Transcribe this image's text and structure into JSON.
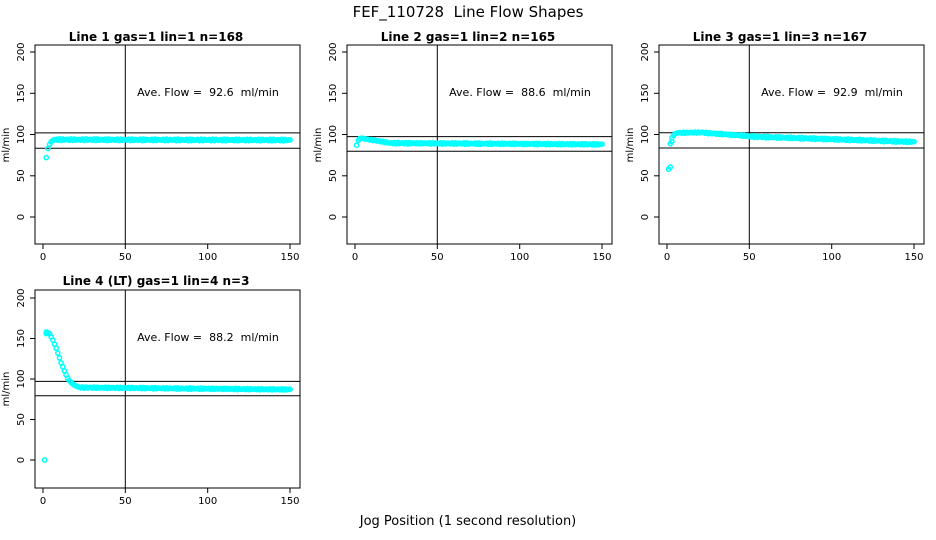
{
  "page_title": "FEF_110728  Line Flow Shapes",
  "x_axis_label": "Jog Position (1 second resolution)",
  "point_color": "#00ffff",
  "axis_color": "#000000",
  "chart_data": [
    {
      "type": "scatter",
      "title": "Line 1 gas=1 lin=1 n=168",
      "annotation": "Ave. Flow =  92.6  ml/min",
      "ave_flow_ml_min": 92.6,
      "n": 168,
      "ylabel": "ml/min",
      "xticks": [
        0,
        50,
        100,
        150
      ],
      "yticks": [
        0,
        50,
        100,
        150,
        200
      ],
      "xlim": [
        -5,
        156
      ],
      "ylim": [
        -33,
        209
      ],
      "vline_x": 50,
      "hlines": [
        101.9,
        83.3
      ],
      "points": [
        [
          2,
          72
        ],
        [
          3,
          83
        ],
        [
          4,
          88
        ],
        [
          5,
          91
        ],
        [
          6,
          93
        ]
      ],
      "runs": [
        {
          "x0": 7,
          "x1": 150,
          "y0": 93.8,
          "y1": 93.2,
          "jitter": 0.9
        }
      ]
    },
    {
      "type": "scatter",
      "title": "Line 2 gas=1 lin=2 n=165",
      "annotation": "Ave. Flow =  88.6  ml/min",
      "ave_flow_ml_min": 88.6,
      "n": 165,
      "ylabel": "ml/min",
      "xticks": [
        0,
        50,
        100,
        150
      ],
      "yticks": [
        0,
        50,
        100,
        150,
        200
      ],
      "xlim": [
        -5,
        156
      ],
      "ylim": [
        -33,
        209
      ],
      "vline_x": 50,
      "hlines": [
        97.5,
        79.7
      ],
      "points": [
        [
          1,
          87
        ],
        [
          2,
          93
        ],
        [
          3,
          95
        ],
        [
          4,
          95.5
        ]
      ],
      "runs": [
        {
          "x0": 5,
          "x1": 20,
          "y0": 95,
          "y1": 90.2,
          "jitter": 0.5
        },
        {
          "x0": 21,
          "x1": 150,
          "y0": 89.6,
          "y1": 88,
          "jitter": 0.8
        }
      ]
    },
    {
      "type": "scatter",
      "title": "Line 3 gas=1 lin=3 n=167",
      "annotation": "Ave. Flow =  92.9  ml/min",
      "ave_flow_ml_min": 92.9,
      "n": 167,
      "ylabel": "ml/min",
      "xticks": [
        0,
        50,
        100,
        150
      ],
      "yticks": [
        0,
        50,
        100,
        150,
        200
      ],
      "xlim": [
        -5,
        156
      ],
      "ylim": [
        -33,
        209
      ],
      "vline_x": 50,
      "hlines": [
        102.2,
        83.6
      ],
      "points": [
        [
          1,
          58
        ],
        [
          2,
          60.5
        ],
        [
          2,
          89
        ],
        [
          3,
          91.5
        ],
        [
          3,
          96
        ],
        [
          4,
          99
        ],
        [
          5,
          101
        ]
      ],
      "runs": [
        {
          "x0": 6,
          "x1": 22,
          "y0": 102,
          "y1": 102.5,
          "jitter": 0.6
        },
        {
          "x0": 23,
          "x1": 50,
          "y0": 102,
          "y1": 98,
          "jitter": 0.7
        },
        {
          "x0": 51,
          "x1": 150,
          "y0": 97.5,
          "y1": 91,
          "jitter": 0.9
        }
      ]
    },
    {
      "type": "scatter",
      "title": "Line 4 (LT) gas=1 lin=4 n=3",
      "annotation": "Ave. Flow =  88.2  ml/min",
      "ave_flow_ml_min": 88.2,
      "n": 3,
      "ylabel": "ml/min",
      "xticks": [
        0,
        50,
        100,
        150
      ],
      "yticks": [
        0,
        50,
        100,
        150,
        200
      ],
      "xlim": [
        -5,
        156
      ],
      "ylim": [
        -35,
        212
      ],
      "vline_x": 50,
      "hlines": [
        97.0,
        79.4
      ],
      "points": [
        [
          1,
          0
        ],
        [
          2,
          156
        ],
        [
          2,
          158
        ],
        [
          3,
          157
        ],
        [
          4,
          156
        ],
        [
          5,
          152
        ],
        [
          6,
          148
        ],
        [
          7,
          143
        ],
        [
          8,
          138
        ],
        [
          9,
          132
        ],
        [
          10,
          126
        ],
        [
          11,
          120
        ],
        [
          12,
          115
        ],
        [
          13,
          110
        ],
        [
          14,
          105
        ],
        [
          15,
          101
        ],
        [
          16,
          98
        ],
        [
          17,
          96
        ],
        [
          18,
          94
        ],
        [
          19,
          92.5
        ],
        [
          20,
          91.5
        ],
        [
          21,
          90.5
        ],
        [
          22,
          90
        ]
      ],
      "runs": [
        {
          "x0": 23,
          "x1": 150,
          "y0": 89.5,
          "y1": 87,
          "jitter": 0.7
        }
      ]
    }
  ]
}
